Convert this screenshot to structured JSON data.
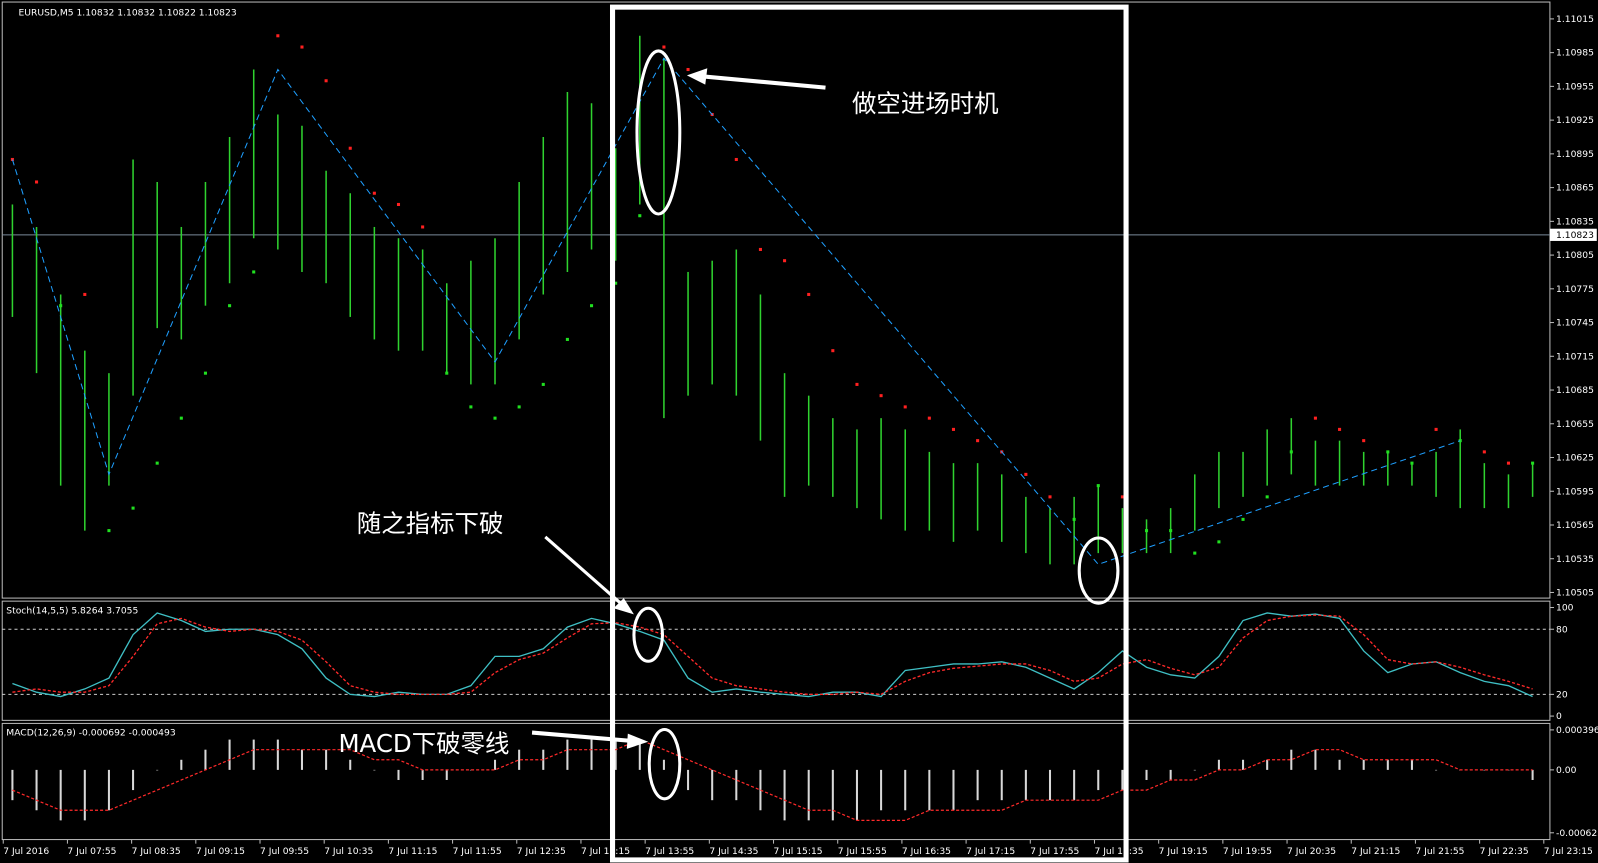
{
  "chart_data": [
    {
      "type": "range_bar",
      "title": "EURUSD,M5  1.10832 1.10832 1.10822 1.10823",
      "color": "#2fd22f",
      "ylim": [
        1.105,
        1.1103
      ],
      "yticks": [
        1.11015,
        1.10985,
        1.10955,
        1.10925,
        1.10895,
        1.10865,
        1.10835,
        1.10805,
        1.10775,
        1.10745,
        1.10715,
        1.10685,
        1.10655,
        1.10625,
        1.10595,
        1.10565,
        1.10535,
        1.10505
      ],
      "price_line": 1.10823,
      "categories": [
        "7 Jul 2016",
        "7 Jul 07:55",
        "7 Jul 08:35",
        "7 Jul 09:15",
        "7 Jul 09:55",
        "7 Jul 10:35",
        "7 Jul 11:15",
        "7 Jul 11:55",
        "7 Jul 12:35",
        "7 Jul 13:15",
        "7 Jul 13:55",
        "7 Jul 14:35",
        "7 Jul 15:15",
        "7 Jul 15:55",
        "7 Jul 16:35",
        "7 Jul 17:15",
        "7 Jul 17:55",
        "7 Jul 18:35",
        "7 Jul 19:15",
        "7 Jul 19:55",
        "7 Jul 20:35",
        "7 Jul 21:15",
        "7 Jul 21:55",
        "7 Jul 22:35",
        "7 Jul 23:15"
      ],
      "high": [
        1.1085,
        1.1083,
        1.1077,
        1.1072,
        1.107,
        1.1089,
        1.1087,
        1.1083,
        1.1087,
        1.1091,
        1.1097,
        1.1093,
        1.1092,
        1.1088,
        1.1086,
        1.1083,
        1.1082,
        1.1081,
        1.1078,
        1.108,
        1.1082,
        1.1087,
        1.1091,
        1.1095,
        1.1094,
        1.109,
        1.11,
        1.1098,
        1.1079,
        1.108,
        1.1081,
        1.1077,
        1.107,
        1.1068,
        1.1066,
        1.1065,
        1.1066,
        1.1065,
        1.1063,
        1.1062,
        1.1062,
        1.1061,
        1.1059,
        1.1058,
        1.1059,
        1.106,
        1.1058,
        1.1057,
        1.1058,
        1.1061,
        1.1063,
        1.1063,
        1.1065,
        1.1066,
        1.1064,
        1.1064,
        1.1063,
        1.1063,
        1.1062,
        1.1063,
        1.1065,
        1.1062,
        1.1061,
        1.1062
      ],
      "low": [
        1.1075,
        1.107,
        1.106,
        1.1056,
        1.106,
        1.1068,
        1.1074,
        1.1073,
        1.1076,
        1.1078,
        1.1082,
        1.1081,
        1.1079,
        1.1078,
        1.1075,
        1.1073,
        1.1072,
        1.1072,
        1.107,
        1.1069,
        1.1069,
        1.1073,
        1.1077,
        1.1079,
        1.1081,
        1.108,
        1.1085,
        1.1066,
        1.1068,
        1.1069,
        1.1068,
        1.1064,
        1.1059,
        1.106,
        1.1059,
        1.1058,
        1.1057,
        1.1056,
        1.1056,
        1.1055,
        1.1056,
        1.1055,
        1.1054,
        1.1053,
        1.1053,
        1.1054,
        1.1054,
        1.1054,
        1.1054,
        1.1056,
        1.1058,
        1.1059,
        1.106,
        1.1061,
        1.106,
        1.106,
        1.106,
        1.106,
        1.106,
        1.1059,
        1.1058,
        1.1058,
        1.1058,
        1.1059
      ],
      "sar": [
        1.1089,
        1.1087,
        1.1076,
        1.1077,
        1.1056,
        1.1058,
        1.1062,
        1.1066,
        1.107,
        1.1076,
        1.1079,
        1.11,
        1.1099,
        1.1096,
        1.109,
        1.1086,
        1.1085,
        1.1083,
        1.107,
        1.1067,
        1.1066,
        1.1067,
        1.1069,
        1.1073,
        1.1076,
        1.1078,
        1.1084,
        1.1099,
        1.1097,
        1.1093,
        1.1089,
        1.1081,
        1.108,
        1.1077,
        1.1072,
        1.1069,
        1.1068,
        1.1067,
        1.1066,
        1.1065,
        1.1064,
        1.1063,
        1.1061,
        1.1059,
        1.1057,
        1.106,
        1.1059,
        1.1056,
        1.1056,
        1.1054,
        1.1055,
        1.1057,
        1.1059,
        1.1063,
        1.1066,
        1.1065,
        1.1064,
        1.1063,
        1.1062,
        1.1065,
        1.1064,
        1.1063,
        1.1062,
        1.1062
      ],
      "zigzag": {
        "index": [
          0,
          4,
          11,
          20,
          27,
          45,
          60
        ],
        "values": [
          1.1089,
          1.1061,
          1.1097,
          1.1071,
          1.1098,
          1.1053,
          1.1064
        ],
        "color": "#1e9fff"
      },
      "annotations": [
        "做空进场时机",
        "随之指标下破",
        "MACD下破零线"
      ]
    },
    {
      "type": "line",
      "title": "Stoch(14,5,5) 5.8264 3.7055",
      "ylim": [
        -3,
        104
      ],
      "yticks": [
        100,
        80,
        20,
        0
      ],
      "levels": [
        80,
        20
      ],
      "series": [
        {
          "color": "#3fbfc4",
          "dashed": false,
          "values": [
            30,
            22,
            18,
            25,
            35,
            75,
            95,
            88,
            78,
            80,
            80,
            75,
            62,
            35,
            20,
            18,
            22,
            20,
            20,
            28,
            55,
            55,
            62,
            82,
            90,
            85,
            78,
            70,
            35,
            22,
            25,
            22,
            20,
            18,
            22,
            22,
            18,
            42,
            45,
            48,
            48,
            50,
            45,
            35,
            25,
            40,
            60,
            45,
            38,
            35,
            55,
            88,
            95,
            92,
            94,
            90,
            60,
            40,
            48,
            50,
            40,
            32,
            28,
            18
          ]
        },
        {
          "color": "#ff2a2a",
          "dashed": true,
          "values": [
            22,
            25,
            22,
            22,
            28,
            55,
            85,
            90,
            82,
            78,
            80,
            78,
            70,
            50,
            28,
            22,
            20,
            20,
            20,
            22,
            40,
            52,
            58,
            72,
            85,
            86,
            82,
            75,
            55,
            35,
            28,
            25,
            22,
            20,
            20,
            22,
            20,
            32,
            40,
            44,
            46,
            48,
            48,
            42,
            32,
            35,
            48,
            52,
            44,
            38,
            45,
            72,
            88,
            92,
            93,
            92,
            75,
            52,
            48,
            50,
            45,
            38,
            32,
            25
          ]
        }
      ]
    },
    {
      "type": "histogram",
      "title": "MACD(12,26,9) -0.000692 -0.000493",
      "ylim": [
        -0.00068,
        0.00044
      ],
      "yticks": [
        0.000396,
        {
          "value": 0,
          "label": "0.00"
        },
        -0.000623
      ],
      "color": "#d8d8d8",
      "values": [
        -0.0003,
        -0.0004,
        -0.0005,
        -0.0005,
        -0.0004,
        -0.0002,
        0,
        0.0001,
        0.0002,
        0.0003,
        0.0003,
        0.0003,
        0.0002,
        0.0002,
        0.0001,
        0,
        -0.0001,
        -0.0001,
        -0.0001,
        0,
        0.0001,
        0.0002,
        0.0002,
        0.0003,
        0.0003,
        0.0003,
        0.0003,
        0.0001,
        -0.0002,
        -0.0003,
        -0.0003,
        -0.0004,
        -0.0005,
        -0.0005,
        -0.0005,
        -0.0005,
        -0.0004,
        -0.0004,
        -0.0004,
        -0.0004,
        -0.0003,
        -0.0003,
        -0.0003,
        -0.0003,
        -0.0003,
        -0.0002,
        -0.0002,
        -0.0001,
        -0.0001,
        0,
        0.0001,
        0.0001,
        0.0001,
        0.0002,
        0.0002,
        0.0001,
        0.0001,
        0.0001,
        0.0001,
        0,
        0,
        0,
        0,
        -0.0001
      ],
      "signal": {
        "color": "#ff2a2a",
        "values": [
          -0.0002,
          -0.0003,
          -0.0004,
          -0.0004,
          -0.0004,
          -0.0003,
          -0.0002,
          -0.0001,
          0,
          0.0001,
          0.0002,
          0.0002,
          0.0002,
          0.0002,
          0.0002,
          0.0001,
          0.0001,
          0,
          0,
          0,
          0,
          0.0001,
          0.0001,
          0.0002,
          0.0002,
          0.0002,
          0.0003,
          0.0002,
          0.0001,
          0,
          -0.0001,
          -0.0002,
          -0.0003,
          -0.0004,
          -0.0004,
          -0.0005,
          -0.0005,
          -0.0005,
          -0.0004,
          -0.0004,
          -0.0004,
          -0.0004,
          -0.0003,
          -0.0003,
          -0.0003,
          -0.0003,
          -0.0002,
          -0.0002,
          -0.0001,
          -0.0001,
          0,
          0,
          0.0001,
          0.0001,
          0.0002,
          0.0002,
          0.0001,
          0.0001,
          0.0001,
          0.0001,
          0,
          0,
          0,
          0
        ]
      }
    }
  ]
}
